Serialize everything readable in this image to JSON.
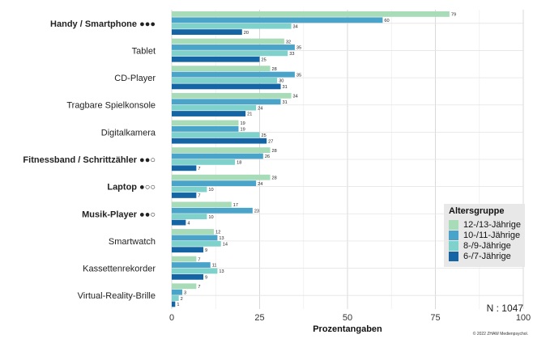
{
  "chart_data": {
    "type": "bar",
    "orientation": "horizontal",
    "xlabel": "Prozentangaben",
    "xlim": [
      0,
      100
    ],
    "xticks": [
      0,
      25,
      50,
      75,
      100
    ],
    "grid": true,
    "legend_position": "bottom-right",
    "legend_title": "Altersgruppe",
    "categories": [
      "Handy / Smartphone ●●●",
      "Tablet",
      "CD-Player",
      "Tragbare Spielkonsole",
      "Digitalkamera",
      "Fitnessband / Schrittzähler ●●○",
      "Laptop ●○○",
      "Musik-Player ●●○",
      "Smartwatch",
      "Kassettenrekorder",
      "Virtual-Reality-Brille"
    ],
    "bold_categories": [
      true,
      false,
      false,
      false,
      false,
      true,
      true,
      true,
      false,
      false,
      false
    ],
    "series": [
      {
        "name": "12-/13-Jährige",
        "color": "#a8dbb8",
        "values": [
          79,
          32,
          28,
          34,
          19,
          28,
          28,
          17,
          12,
          7,
          7
        ]
      },
      {
        "name": "10-/11-Jährige",
        "color": "#4aa3c8",
        "values": [
          60,
          35,
          35,
          31,
          19,
          26,
          24,
          23,
          13,
          11,
          3
        ]
      },
      {
        "name": "8-/9-Jährige",
        "color": "#7fd1cc",
        "values": [
          34,
          33,
          30,
          24,
          25,
          18,
          10,
          10,
          14,
          13,
          2
        ]
      },
      {
        "name": "6-/7-Jährige",
        "color": "#1565a4",
        "values": [
          20,
          25,
          31,
          21,
          27,
          7,
          7,
          4,
          9,
          9,
          1
        ]
      }
    ]
  },
  "legend_items_order": [
    0,
    1,
    2,
    3
  ],
  "sample_size": "N : 1047",
  "credit": "© 2022 ZHAW Medienpsychol."
}
